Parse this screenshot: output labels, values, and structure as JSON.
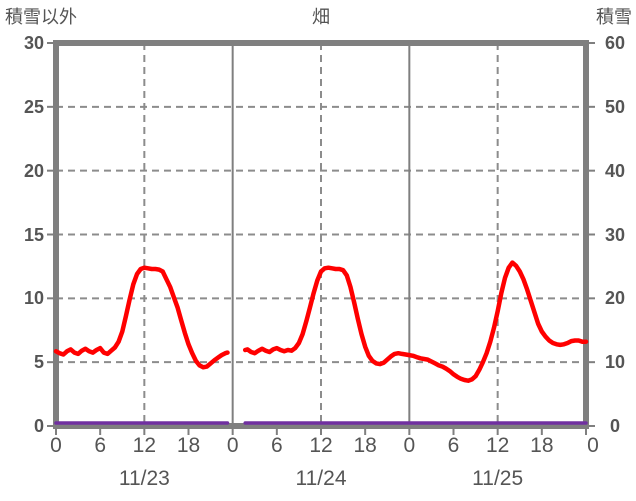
{
  "titles": {
    "left_axis_title": "積雪以外",
    "chart_title": "畑",
    "right_axis_title": "積雪"
  },
  "left_axis": {
    "labels": [
      "30",
      "25",
      "20",
      "15",
      "10",
      "5",
      "0"
    ],
    "values": [
      30,
      25,
      20,
      15,
      10,
      5,
      0
    ],
    "range": [
      0,
      30
    ]
  },
  "right_axis": {
    "labels": [
      "60",
      "50",
      "40",
      "30",
      "20",
      "10",
      "0"
    ],
    "values": [
      60,
      50,
      40,
      30,
      20,
      10,
      0
    ],
    "range": [
      0,
      60
    ]
  },
  "x_axis": {
    "hour_labels": [
      "0",
      "6",
      "12",
      "18",
      "0",
      "6",
      "12",
      "18",
      "0",
      "6",
      "12",
      "18",
      "0"
    ],
    "hour_values": [
      0,
      6,
      12,
      18,
      24,
      30,
      36,
      42,
      48,
      54,
      60,
      66,
      72
    ],
    "date_labels": [
      "11/23",
      "11/24",
      "11/25"
    ],
    "date_center_hours": [
      12,
      36,
      60
    ]
  },
  "colors": {
    "red_line": "#ff0000",
    "purple_line": "#7030a0",
    "grid": "#8c8c8c",
    "border": "#7f7f7f",
    "text": "#555555"
  },
  "chart_data": {
    "type": "line",
    "title": "畑",
    "left_axis_label": "積雪以外",
    "right_axis_label": "積雪",
    "x_unit": "hour-of-day over 3 days",
    "x_tick_hours": [
      0,
      6,
      12,
      18,
      24,
      30,
      36,
      42,
      48,
      54,
      60,
      66,
      72
    ],
    "x_dates": [
      "11/23",
      "11/24",
      "11/25"
    ],
    "left_ylim": [
      0,
      30
    ],
    "right_ylim": [
      0,
      60
    ],
    "xlim_hours": [
      0,
      72
    ],
    "grid": {
      "h_dashed_values": [
        5,
        10,
        15,
        20,
        25
      ],
      "v_dashed_hours": [
        12,
        36,
        60
      ],
      "v_solid_hours": [
        24,
        48
      ],
      "tick_len": 6
    },
    "legend": "none",
    "series": [
      {
        "name": "積雪以外",
        "axis": "left",
        "color": "#ff0000",
        "width": 4.5,
        "segments": [
          [
            [
              0,
              5.85
            ],
            [
              0.5,
              5.7
            ],
            [
              1,
              5.6
            ],
            [
              1.5,
              5.85
            ],
            [
              2,
              6.0
            ],
            [
              2.5,
              5.75
            ],
            [
              3,
              5.65
            ],
            [
              3.5,
              5.9
            ],
            [
              4,
              6.05
            ],
            [
              4.5,
              5.85
            ],
            [
              5,
              5.75
            ],
            [
              5.5,
              5.95
            ],
            [
              6,
              6.1
            ],
            [
              6.5,
              5.75
            ],
            [
              7,
              5.65
            ],
            [
              7.5,
              5.9
            ],
            [
              8,
              6.15
            ],
            [
              8.5,
              6.6
            ],
            [
              9,
              7.4
            ],
            [
              9.5,
              8.6
            ],
            [
              10,
              9.9
            ],
            [
              10.5,
              11.1
            ],
            [
              11,
              11.9
            ],
            [
              11.5,
              12.3
            ],
            [
              12,
              12.4
            ],
            [
              12.5,
              12.35
            ],
            [
              13,
              12.3
            ],
            [
              13.5,
              12.3
            ],
            [
              14,
              12.25
            ],
            [
              14.5,
              12.1
            ],
            [
              15,
              11.5
            ],
            [
              15.5,
              10.9
            ],
            [
              16,
              10.1
            ],
            [
              16.5,
              9.3
            ],
            [
              17,
              8.3
            ],
            [
              17.5,
              7.3
            ],
            [
              18,
              6.4
            ],
            [
              18.5,
              5.7
            ],
            [
              19,
              5.1
            ],
            [
              19.5,
              4.75
            ],
            [
              20,
              4.6
            ],
            [
              20.5,
              4.65
            ],
            [
              21,
              4.9
            ],
            [
              21.5,
              5.15
            ],
            [
              22,
              5.35
            ],
            [
              22.5,
              5.55
            ],
            [
              23,
              5.7
            ],
            [
              23.3,
              5.75
            ]
          ],
          [
            [
              25.7,
              5.95
            ],
            [
              26,
              6.0
            ],
            [
              26.5,
              5.8
            ],
            [
              27,
              5.7
            ],
            [
              27.5,
              5.9
            ],
            [
              28,
              6.05
            ],
            [
              28.5,
              5.9
            ],
            [
              29,
              5.8
            ],
            [
              29.5,
              6.0
            ],
            [
              30,
              6.1
            ],
            [
              30.5,
              5.95
            ],
            [
              31,
              5.85
            ],
            [
              31.5,
              5.95
            ],
            [
              32,
              5.9
            ],
            [
              32.5,
              6.1
            ],
            [
              33,
              6.5
            ],
            [
              33.5,
              7.2
            ],
            [
              34,
              8.2
            ],
            [
              34.5,
              9.3
            ],
            [
              35,
              10.4
            ],
            [
              35.5,
              11.4
            ],
            [
              36,
              12.1
            ],
            [
              36.5,
              12.35
            ],
            [
              37,
              12.4
            ],
            [
              37.5,
              12.35
            ],
            [
              38,
              12.3
            ],
            [
              38.5,
              12.3
            ],
            [
              39,
              12.2
            ],
            [
              39.5,
              11.8
            ],
            [
              40,
              10.9
            ],
            [
              40.5,
              9.7
            ],
            [
              41,
              8.4
            ],
            [
              41.5,
              7.2
            ],
            [
              42,
              6.2
            ],
            [
              42.5,
              5.5
            ],
            [
              43,
              5.1
            ],
            [
              43.5,
              4.9
            ],
            [
              44,
              4.85
            ],
            [
              44.5,
              4.95
            ],
            [
              45,
              5.2
            ],
            [
              45.5,
              5.45
            ],
            [
              46,
              5.65
            ],
            [
              46.5,
              5.7
            ],
            [
              47,
              5.65
            ],
            [
              47.5,
              5.6
            ],
            [
              48,
              5.55
            ],
            [
              48.5,
              5.5
            ],
            [
              49,
              5.4
            ],
            [
              49.5,
              5.3
            ],
            [
              50,
              5.25
            ],
            [
              50.5,
              5.2
            ],
            [
              51,
              5.05
            ],
            [
              51.5,
              4.9
            ],
            [
              52,
              4.75
            ],
            [
              52.5,
              4.65
            ],
            [
              53,
              4.5
            ],
            [
              53.5,
              4.3
            ],
            [
              54,
              4.05
            ],
            [
              54.5,
              3.85
            ],
            [
              55,
              3.7
            ],
            [
              55.5,
              3.6
            ],
            [
              56,
              3.55
            ],
            [
              56.5,
              3.65
            ],
            [
              57,
              3.9
            ],
            [
              57.5,
              4.4
            ],
            [
              58,
              5.0
            ],
            [
              58.5,
              5.7
            ],
            [
              59,
              6.6
            ],
            [
              59.5,
              7.7
            ],
            [
              60,
              9.0
            ],
            [
              60.5,
              10.4
            ],
            [
              61,
              11.6
            ],
            [
              61.5,
              12.4
            ],
            [
              62,
              12.8
            ],
            [
              62.5,
              12.55
            ],
            [
              63,
              12.1
            ],
            [
              63.5,
              11.5
            ],
            [
              64,
              10.7
            ],
            [
              64.5,
              9.8
            ],
            [
              65,
              8.9
            ],
            [
              65.5,
              8.0
            ],
            [
              66,
              7.4
            ],
            [
              66.5,
              7.0
            ],
            [
              67,
              6.7
            ],
            [
              67.5,
              6.5
            ],
            [
              68,
              6.4
            ],
            [
              68.5,
              6.35
            ],
            [
              69,
              6.4
            ],
            [
              69.5,
              6.5
            ],
            [
              70,
              6.65
            ],
            [
              70.5,
              6.7
            ],
            [
              71,
              6.7
            ],
            [
              71.5,
              6.6
            ],
            [
              72,
              6.6
            ]
          ]
        ]
      },
      {
        "name": "積雪",
        "axis": "right",
        "color": "#7030a0",
        "width": 3.5,
        "segments": [
          [
            [
              0,
              0
            ],
            [
              23.3,
              0
            ]
          ],
          [
            [
              25.7,
              0
            ],
            [
              72,
              0
            ]
          ]
        ]
      }
    ]
  }
}
